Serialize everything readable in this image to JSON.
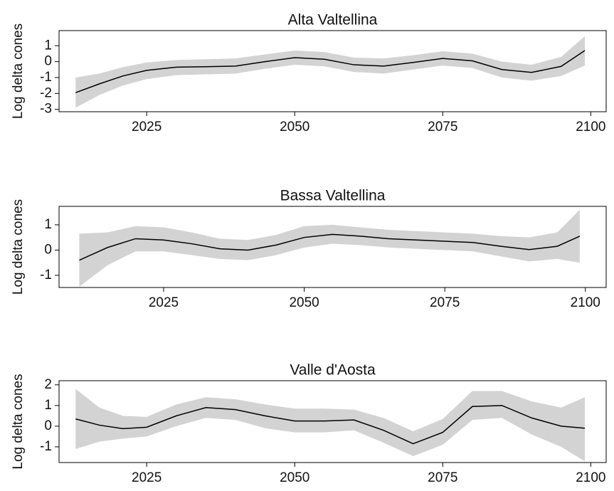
{
  "chart_data": [
    {
      "type": "line",
      "title": "Alta Valtellina",
      "ylabel": "Log delta cones",
      "x": [
        2013,
        2017,
        2021,
        2025,
        2030,
        2035,
        2040,
        2045,
        2050,
        2055,
        2060,
        2065,
        2070,
        2075,
        2080,
        2085,
        2090,
        2095,
        2099
      ],
      "series": [
        {
          "color": "#000000",
          "band_color": "#d3d3d3",
          "values": [
            -1.95,
            -1.4,
            -0.9,
            -0.55,
            -0.35,
            -0.32,
            -0.28,
            0.0,
            0.25,
            0.15,
            -0.2,
            -0.28,
            -0.05,
            0.2,
            0.05,
            -0.5,
            -0.68,
            -0.3,
            0.7
          ],
          "lower": [
            -2.9,
            -2.1,
            -1.5,
            -1.1,
            -0.85,
            -0.8,
            -0.75,
            -0.45,
            -0.2,
            -0.3,
            -0.65,
            -0.75,
            -0.5,
            -0.25,
            -0.4,
            -1.0,
            -1.2,
            -0.9,
            -0.25
          ],
          "upper": [
            -1.0,
            -0.75,
            -0.35,
            -0.05,
            0.1,
            0.15,
            0.2,
            0.45,
            0.7,
            0.6,
            0.25,
            0.2,
            0.4,
            0.65,
            0.5,
            0.0,
            -0.2,
            0.3,
            1.6
          ]
        }
      ],
      "xlim": [
        2010.2,
        2102.6
      ],
      "xticks": [
        2025,
        2050,
        2075,
        2100
      ],
      "ylim": [
        -3.15,
        1.95
      ],
      "yticks": [
        -3,
        -2,
        -1,
        0,
        1
      ]
    },
    {
      "type": "line",
      "title": "Bassa Valtellina",
      "ylabel": "Log delta cones",
      "x": [
        2010,
        2015,
        2020,
        2025,
        2030,
        2035,
        2040,
        2045,
        2050,
        2055,
        2060,
        2065,
        2070,
        2075,
        2080,
        2085,
        2090,
        2095,
        2099
      ],
      "series": [
        {
          "color": "#000000",
          "band_color": "#d3d3d3",
          "values": [
            -0.4,
            0.1,
            0.45,
            0.4,
            0.25,
            0.05,
            0.0,
            0.2,
            0.5,
            0.62,
            0.55,
            0.45,
            0.4,
            0.35,
            0.3,
            0.15,
            0.02,
            0.15,
            0.55
          ],
          "lower": [
            -1.45,
            -0.6,
            -0.05,
            -0.05,
            -0.2,
            -0.35,
            -0.4,
            -0.2,
            0.1,
            0.25,
            0.2,
            0.1,
            0.05,
            0.0,
            -0.05,
            -0.25,
            -0.45,
            -0.35,
            -0.5
          ],
          "upper": [
            0.65,
            0.7,
            0.95,
            0.9,
            0.7,
            0.45,
            0.4,
            0.6,
            0.95,
            1.0,
            0.9,
            0.8,
            0.75,
            0.7,
            0.65,
            0.55,
            0.5,
            0.7,
            1.6
          ]
        }
      ],
      "xlim": [
        2006.4,
        2103.7
      ],
      "xticks": [
        2025,
        2050,
        2075,
        2100
      ],
      "ylim": [
        -1.48,
        1.73
      ],
      "yticks": [
        -1,
        0,
        1
      ]
    },
    {
      "type": "line",
      "title": "Valle d'Aosta",
      "ylabel": "Log delta cones",
      "x": [
        2013,
        2017,
        2021,
        2025,
        2030,
        2035,
        2040,
        2045,
        2050,
        2055,
        2060,
        2065,
        2070,
        2075,
        2080,
        2085,
        2090,
        2095,
        2099
      ],
      "series": [
        {
          "color": "#000000",
          "band_color": "#d3d3d3",
          "values": [
            0.35,
            0.05,
            -0.12,
            -0.05,
            0.5,
            0.9,
            0.8,
            0.5,
            0.25,
            0.25,
            0.3,
            -0.2,
            -0.85,
            -0.3,
            0.95,
            1.0,
            0.4,
            0.0,
            -0.1
          ],
          "lower": [
            -1.1,
            -0.75,
            -0.6,
            -0.5,
            0.0,
            0.4,
            0.3,
            -0.1,
            -0.3,
            -0.3,
            -0.2,
            -0.8,
            -1.45,
            -0.9,
            0.3,
            0.4,
            -0.4,
            -1.0,
            -1.7
          ],
          "upper": [
            1.8,
            0.9,
            0.5,
            0.45,
            1.05,
            1.4,
            1.3,
            1.05,
            0.85,
            0.85,
            0.8,
            0.4,
            -0.25,
            0.35,
            1.7,
            1.7,
            1.2,
            0.9,
            1.4
          ]
        }
      ],
      "xlim": [
        2010.2,
        2102.6
      ],
      "xticks": [
        2025,
        2050,
        2075,
        2100
      ],
      "ylim": [
        -1.76,
        2.2
      ],
      "yticks": [
        -1,
        0,
        1,
        2
      ]
    }
  ]
}
